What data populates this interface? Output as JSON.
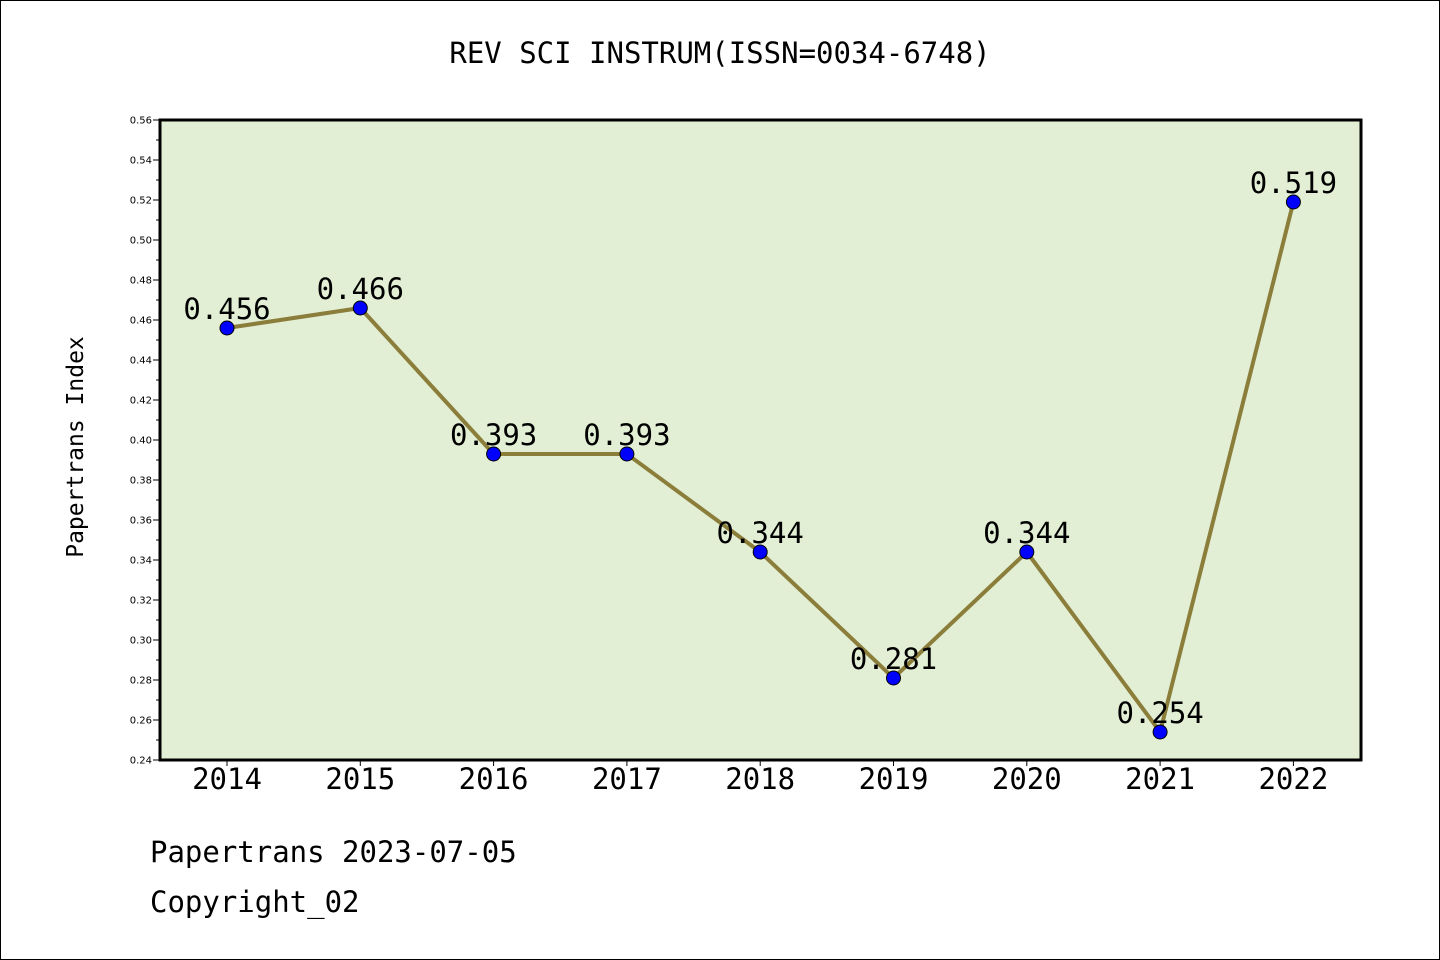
{
  "chart_data": {
    "type": "line",
    "title": "REV SCI INSTRUM(ISSN=0034-6748)",
    "xlabel": "",
    "ylabel": "Papertrans Index",
    "categories": [
      "2014",
      "2015",
      "2016",
      "2017",
      "2018",
      "2019",
      "2020",
      "2021",
      "2022"
    ],
    "series": [
      {
        "values": [
          0.456,
          0.466,
          0.393,
          0.393,
          0.344,
          0.281,
          0.344,
          0.254,
          0.519
        ],
        "data_labels": [
          "0.456",
          "0.466",
          "0.393",
          "0.393",
          "0.344",
          "0.281",
          "0.344",
          "0.254",
          "0.519"
        ]
      }
    ],
    "ylim": [
      0.24,
      0.56
    ],
    "y_ticks": [
      "0.24",
      "0.26",
      "0.28",
      "0.30",
      "0.32",
      "0.34",
      "0.36",
      "0.38",
      "0.40",
      "0.42",
      "0.44",
      "0.46",
      "0.48",
      "0.50",
      "0.52",
      "0.54",
      "0.56"
    ],
    "grid": false,
    "legend": "none",
    "colors": {
      "plot_background": "#e2efd5",
      "line": "#8b7d3a",
      "marker": "#0000ff"
    }
  },
  "footer": {
    "date_line": "Papertrans 2023-07-05",
    "copyright_line": "Copyright_02"
  }
}
